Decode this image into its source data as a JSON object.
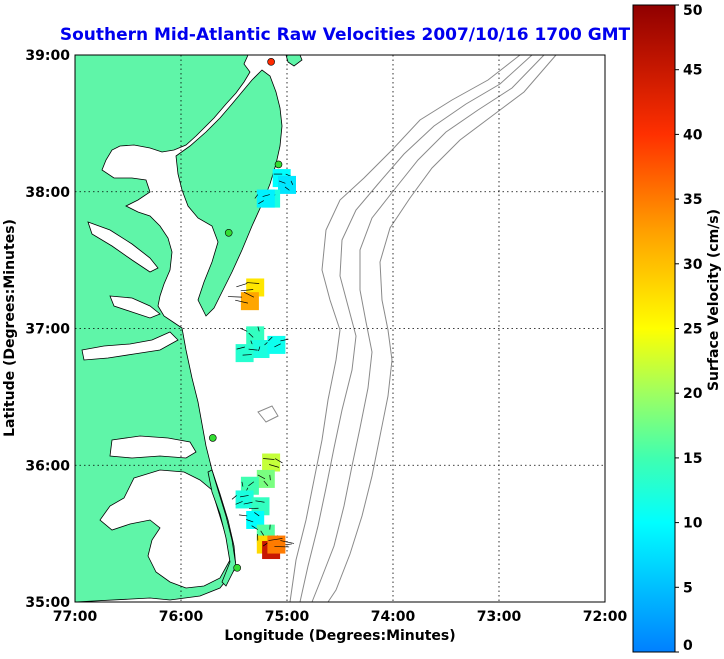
{
  "title": "Southern Mid-Atlantic Raw Velocities 2007/10/16 1700 GMT",
  "title_color": "#0000ee",
  "land_color": "#5ff5a8",
  "ocean_color": "#ffffff",
  "coast_color": "#000000",
  "bathymetry_color": "#8a8a8a",
  "map_data": {
    "type": "map",
    "xlabel": "Longitude (Degrees:Minutes)",
    "ylabel": "Latitude (Degrees:Minutes)",
    "lon_ticks": [
      "77:00",
      "76:00",
      "75:00",
      "74:00",
      "73:00",
      "72:00"
    ],
    "lat_ticks": [
      "39:00",
      "38:00",
      "37:00",
      "36:00",
      "35:00"
    ],
    "lon_range": [
      -77,
      -72
    ],
    "lat_range": [
      35,
      39
    ],
    "grid": true,
    "stations": [
      {
        "lon": -75.15,
        "lat": 38.95,
        "color": "#ff2a00"
      },
      {
        "lon": -75.08,
        "lat": 38.2,
        "color": "#33dd33"
      },
      {
        "lon": -75.55,
        "lat": 37.7,
        "color": "#33dd33"
      },
      {
        "lon": -75.7,
        "lat": 36.2,
        "color": "#33dd33"
      },
      {
        "lon": -75.47,
        "lat": 35.25,
        "color": "#33dd33"
      }
    ],
    "velocity_cells": [
      {
        "lon": -75.05,
        "lat": 38.1,
        "speed": 10
      },
      {
        "lon": -75.0,
        "lat": 38.05,
        "speed": 8
      },
      {
        "lon": -75.15,
        "lat": 37.95,
        "speed": 12
      },
      {
        "lon": -75.2,
        "lat": 37.95,
        "speed": 9
      },
      {
        "lon": -75.3,
        "lat": 37.3,
        "speed": 27
      },
      {
        "lon": -75.35,
        "lat": 37.2,
        "speed": 32
      },
      {
        "lon": -75.3,
        "lat": 36.95,
        "speed": 14
      },
      {
        "lon": -75.25,
        "lat": 36.85,
        "speed": 12
      },
      {
        "lon": -75.1,
        "lat": 36.88,
        "speed": 11
      },
      {
        "lon": -75.4,
        "lat": 36.82,
        "speed": 13
      },
      {
        "lon": -75.15,
        "lat": 36.02,
        "speed": 22
      },
      {
        "lon": -75.2,
        "lat": 35.9,
        "speed": 18
      },
      {
        "lon": -75.35,
        "lat": 35.85,
        "speed": 15
      },
      {
        "lon": -75.4,
        "lat": 35.75,
        "speed": 12
      },
      {
        "lon": -75.25,
        "lat": 35.7,
        "speed": 14
      },
      {
        "lon": -75.3,
        "lat": 35.6,
        "speed": 10
      },
      {
        "lon": -75.2,
        "lat": 35.5,
        "speed": 16
      },
      {
        "lon": -75.2,
        "lat": 35.42,
        "speed": 28
      },
      {
        "lon": -75.15,
        "lat": 35.38,
        "speed": 45
      },
      {
        "lon": -75.1,
        "lat": 35.42,
        "speed": 35
      }
    ]
  },
  "colorbar": {
    "label": "Surface Velocity (cm/s)",
    "ticks": [
      "0",
      "5",
      "10",
      "15",
      "20",
      "25",
      "30",
      "35",
      "40",
      "45",
      "50"
    ],
    "min": 0,
    "max": 50
  }
}
